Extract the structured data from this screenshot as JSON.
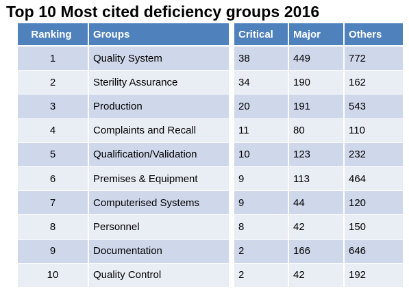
{
  "title": "Top 10 Most cited deficiency groups 2016",
  "left_headers": {
    "ranking": "Ranking",
    "groups": "Groups"
  },
  "right_headers": {
    "critical": "Critical",
    "major": "Major",
    "others": "Others"
  },
  "rows": [
    {
      "ranking": "1",
      "group": "Quality System",
      "critical": "38",
      "major": "449",
      "others": "772"
    },
    {
      "ranking": "2",
      "group": "Sterility Assurance",
      "critical": "34",
      "major": "190",
      "others": "162"
    },
    {
      "ranking": "3",
      "group": "Production",
      "critical": "20",
      "major": "191",
      "others": "543"
    },
    {
      "ranking": "4",
      "group": "Complaints and Recall",
      "critical": "11",
      "major": "80",
      "others": "110"
    },
    {
      "ranking": "5",
      "group": "Qualification/Validation",
      "critical": "10",
      "major": "123",
      "others": "232"
    },
    {
      "ranking": "6",
      "group": "Premises & Equipment",
      "critical": "9",
      "major": "113",
      "others": "464"
    },
    {
      "ranking": "7",
      "group": "Computerised Systems",
      "critical": "9",
      "major": "44",
      "others": "120"
    },
    {
      "ranking": "8",
      "group": "Personnel",
      "critical": "8",
      "major": "42",
      "others": "150"
    },
    {
      "ranking": "9",
      "group": "Documentation",
      "critical": "2",
      "major": "166",
      "others": "646"
    },
    {
      "ranking": "10",
      "group": "Quality Control",
      "critical": "2",
      "major": "42",
      "others": "192"
    }
  ],
  "colors": {
    "header_bg": "#4f81bd",
    "row_dark": "#cfd7ea",
    "row_light": "#e9edf4",
    "header_text": "#ffffff"
  }
}
